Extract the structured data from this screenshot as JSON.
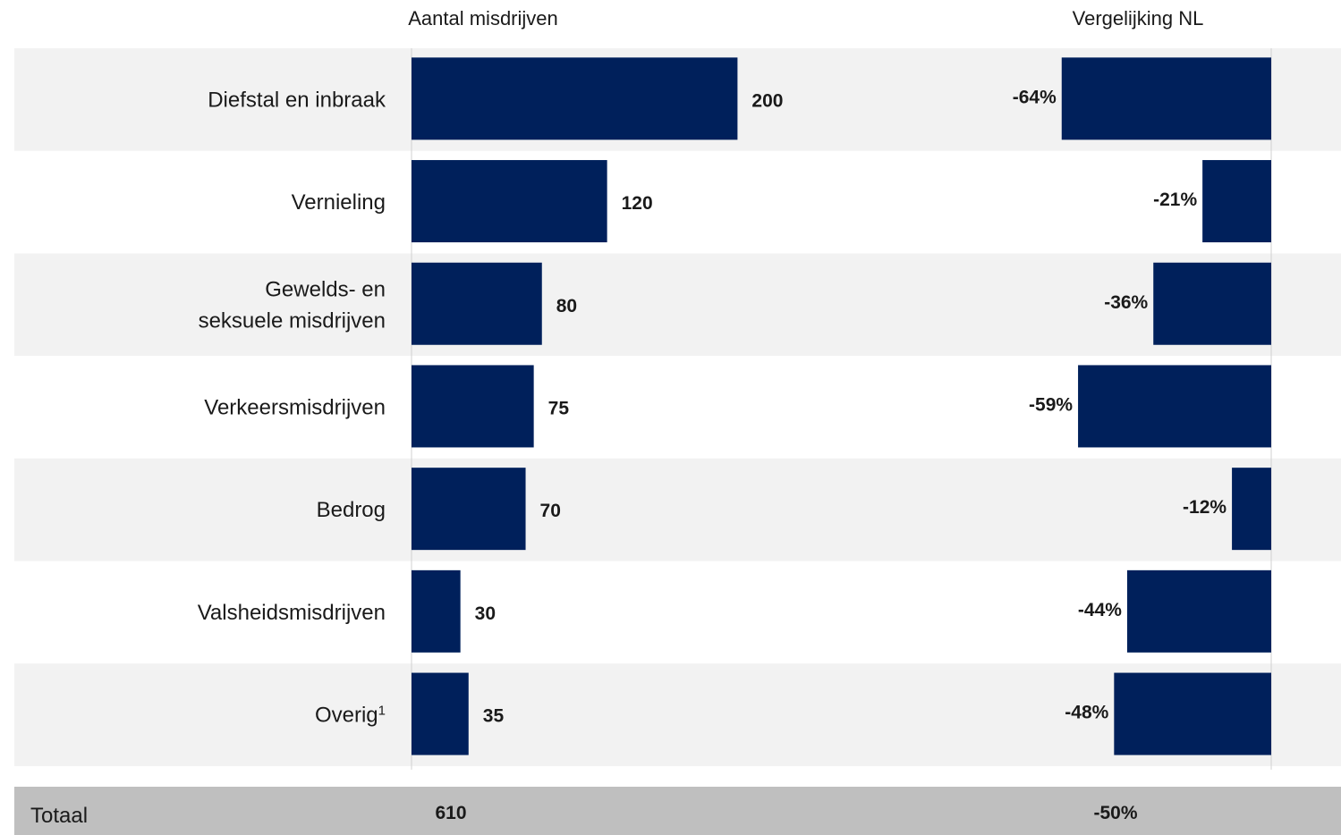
{
  "chart_data": {
    "type": "bar",
    "orientation": "horizontal",
    "left_panel_title": "Aantal misdrijven",
    "right_panel_title": "Vergelijking NL",
    "categories": [
      [
        "Diefstal en inbraak"
      ],
      [
        "Vernieling"
      ],
      [
        "Gewelds- en",
        "seksuele misdrijven"
      ],
      [
        "Verkeersmisdrijven"
      ],
      [
        "Bedrog"
      ],
      [
        "Valsheidsmisdrijven"
      ],
      [
        "Overig"
      ]
    ],
    "footnote_marks": [
      "",
      "",
      "",
      "",
      "",
      "",
      "1"
    ],
    "series": [
      {
        "values": [
          200,
          120,
          80,
          75,
          70,
          30,
          35
        ],
        "labels": [
          "200",
          "120",
          "80",
          "75",
          "70",
          "30",
          "35"
        ]
      },
      {
        "values": [
          -64,
          -21,
          -36,
          -59,
          -12,
          -44,
          -48
        ],
        "labels": [
          "-64%",
          "-21%",
          "-36%",
          "-59%",
          "-12%",
          "-44%",
          "-48%"
        ]
      }
    ],
    "total": {
      "label": "Totaal",
      "count": "610",
      "comparison": "-50%"
    },
    "colors": {
      "bar": "#00205b",
      "row_band": "#f2f2f2",
      "total_band": "#bfbfbf",
      "axis": "#d0d0d0"
    }
  }
}
